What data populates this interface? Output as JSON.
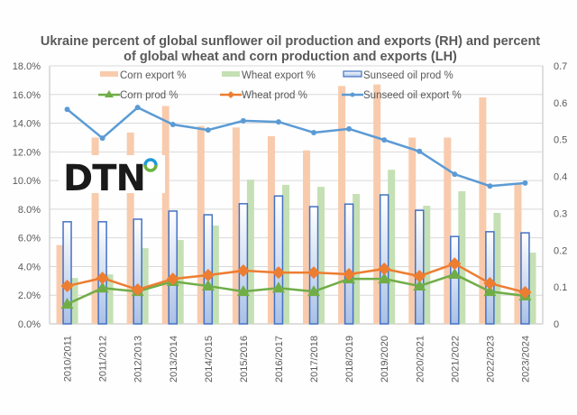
{
  "chart_data": {
    "type": "bar+line",
    "title": "Ukraine percent of global sunflower oil production and exports (RH) and percent of global wheat and corn production and exports (LH)",
    "title_lines": [
      "Ukraine percent of global sunflower oil production and exports (RH) and percent",
      "of global wheat and corn production and exports (LH)"
    ],
    "xlabel": "",
    "ylabel_left": "",
    "ylabel_right": "",
    "categories": [
      "2010/2011",
      "2011/2012",
      "2012/2013",
      "2013/2014",
      "2014/2015",
      "2015/2016",
      "2016/2017",
      "2017/2018",
      "2018/2019",
      "2019/2020",
      "2020/2021",
      "2021/2022",
      "2022/2023",
      "2023/2024"
    ],
    "ylim_left": [
      0,
      18
    ],
    "yticks_left": [
      "0.0%",
      "2.0%",
      "4.0%",
      "6.0%",
      "8.0%",
      "10.0%",
      "12.0%",
      "14.0%",
      "16.0%",
      "18.0%"
    ],
    "ylim_right": [
      0,
      0.7
    ],
    "yticks_right": [
      "0",
      "0.1",
      "0.2",
      "0.3",
      "0.4",
      "0.5",
      "0.6",
      "0.7"
    ],
    "grid": true,
    "legend_position": "top",
    "series": [
      {
        "name": "Corn export %",
        "type": "bar",
        "axis": "left",
        "color": "#f8cbad",
        "values": [
          5.5,
          13.0,
          13.35,
          15.2,
          13.8,
          13.7,
          13.1,
          12.1,
          16.6,
          16.7,
          13.0,
          13.0,
          15.8,
          9.75
        ]
      },
      {
        "name": "Wheat export %",
        "type": "bar",
        "axis": "left",
        "color": "#c5e0b4",
        "values": [
          3.2,
          3.45,
          5.28,
          5.85,
          6.86,
          10.06,
          9.7,
          9.56,
          9.06,
          10.75,
          8.24,
          9.25,
          7.74,
          4.97
        ]
      },
      {
        "name": "Sunseed oil prod %",
        "type": "bar",
        "axis": "right",
        "color": "#4472c4",
        "values": [
          0.277,
          0.277,
          0.284,
          0.306,
          0.296,
          0.326,
          0.347,
          0.318,
          0.325,
          0.35,
          0.308,
          0.237,
          0.25,
          0.247
        ]
      },
      {
        "name": "Corn prod %",
        "type": "line",
        "axis": "left",
        "color": "#70ad47",
        "marker": "triangle",
        "values": [
          1.38,
          2.5,
          2.26,
          2.96,
          2.64,
          2.26,
          2.5,
          2.26,
          3.14,
          3.14,
          2.64,
          3.46,
          2.26,
          1.95
        ]
      },
      {
        "name": "Wheat prod %",
        "type": "line",
        "axis": "left",
        "color": "#ed7d31",
        "marker": "diamond",
        "values": [
          2.64,
          3.2,
          2.39,
          3.14,
          3.4,
          3.71,
          3.58,
          3.58,
          3.46,
          3.84,
          3.33,
          4.2,
          2.83,
          2.2
        ]
      },
      {
        "name": "Sunseed oil export %",
        "type": "line",
        "axis": "right",
        "color": "#5b9bd5",
        "marker": "circle",
        "values": [
          0.582,
          0.504,
          0.587,
          0.541,
          0.526,
          0.551,
          0.548,
          0.519,
          0.529,
          0.499,
          0.468,
          0.406,
          0.374,
          0.382
        ]
      }
    ]
  },
  "logo": {
    "text": "DTN",
    "name": "DTN logo"
  }
}
